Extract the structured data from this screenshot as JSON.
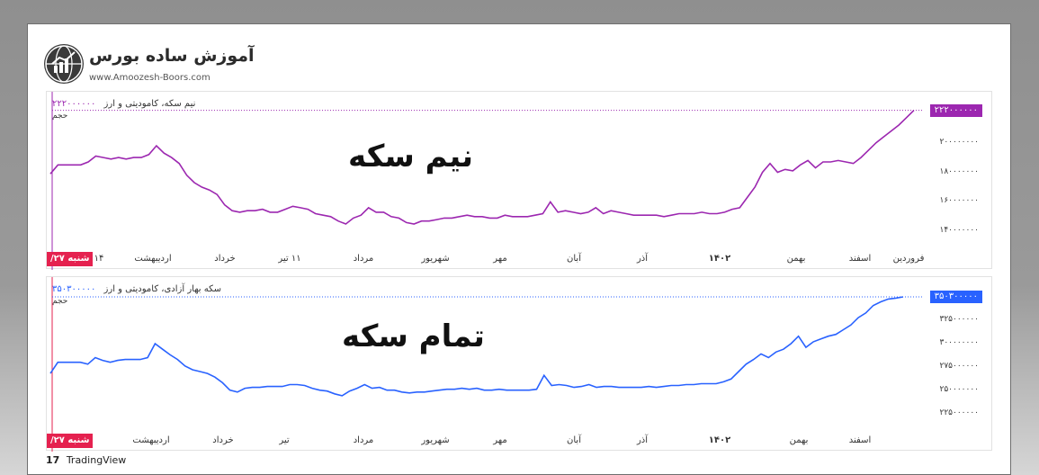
{
  "logo": {
    "icon": "chart-globe-icon",
    "title": "آموزش ساده بورس",
    "url": "www.Amoozesh-Boors.com"
  },
  "footer": {
    "brand_mark": "17",
    "brand": "TradingView"
  },
  "colors": {
    "series1": "#9c27b0",
    "series2": "#2962ff",
    "date_tag": "#e5214f"
  },
  "chart_data": [
    {
      "type": "line",
      "big_label": "نیم سکه",
      "legend_name": "نیم سکه، کامودیتی و ارز",
      "legend_value": "۲۲۲۰۰۰۰۰۰",
      "volume_label": "حجم",
      "last_price_label": "۲۲۲۰۰۰۰۰۰",
      "date_tag": "شنبه ۲۷/",
      "ylim": [
        131000000,
        226000000
      ],
      "y_ticks": [
        {
          "v": 200000000,
          "label": "۲۰۰۰۰۰۰۰۰"
        },
        {
          "v": 180000000,
          "label": "۱۸۰۰۰۰۰۰۰"
        },
        {
          "v": 160000000,
          "label": "۱۶۰۰۰۰۰۰۰"
        },
        {
          "v": 140000000,
          "label": "۱۴۰۰۰۰۰۰۰"
        }
      ],
      "x_ticks": [
        "۱۴",
        "اردیبهشت",
        "خرداد",
        "۱۱ تیر",
        "مرداد",
        "شهریور",
        "مهر",
        "آبان",
        "آذر",
        "۱۴۰۲",
        "بهمن",
        "اسفند",
        "فروردین"
      ],
      "bold_ticks": [
        "۱۴۰۲"
      ],
      "y": [
        179000000,
        185000000,
        185000000,
        185000000,
        185000000,
        187000000,
        191000000,
        190000000,
        189000000,
        190000000,
        189000000,
        190000000,
        190000000,
        192000000,
        198000000,
        193000000,
        190000000,
        186000000,
        178000000,
        173000000,
        170000000,
        168000000,
        165000000,
        158000000,
        154000000,
        153000000,
        154000000,
        154000000,
        155000000,
        153000000,
        153000000,
        155000000,
        157000000,
        156000000,
        155000000,
        152000000,
        151000000,
        150000000,
        147000000,
        145000000,
        149000000,
        151000000,
        156000000,
        153000000,
        153000000,
        150000000,
        149000000,
        146000000,
        145000000,
        147000000,
        147000000,
        148000000,
        149000000,
        149000000,
        150000000,
        151000000,
        150000000,
        150000000,
        149000000,
        149000000,
        151000000,
        150000000,
        150000000,
        150000000,
        151000000,
        152000000,
        160000000,
        153000000,
        154000000,
        153000000,
        152000000,
        153000000,
        156000000,
        152000000,
        154000000,
        153000000,
        152000000,
        151000000,
        151000000,
        151000000,
        151000000,
        150000000,
        151000000,
        152000000,
        152000000,
        152000000,
        153000000,
        152000000,
        152000000,
        153000000,
        155000000,
        156000000,
        163000000,
        170000000,
        180000000,
        186000000,
        180000000,
        182000000,
        181000000,
        185000000,
        188000000,
        183000000,
        187000000,
        187000000,
        188000000,
        187000000,
        186000000,
        190000000,
        195000000,
        200000000,
        204000000,
        208000000,
        212000000,
        217000000,
        222000000
      ]
    },
    {
      "type": "line",
      "big_label": "تمام سکه",
      "legend_name": "سکه بهار آزادی، کامودیتی و ارز",
      "legend_value": "۳۵۰۳۰۰۰۰۰",
      "volume_label": "حجم",
      "last_price_label": "۳۵۰۳۰۰۰۰۰",
      "date_tag": "شنبه ۲۷/",
      "ylim": [
        211000000,
        360000000
      ],
      "y_ticks": [
        {
          "v": 325000000,
          "label": "۳۲۵۰۰۰۰۰۰"
        },
        {
          "v": 300000000,
          "label": "۳۰۰۰۰۰۰۰۰"
        },
        {
          "v": 275000000,
          "label": "۲۷۵۰۰۰۰۰۰"
        },
        {
          "v": 250000000,
          "label": "۲۵۰۰۰۰۰۰۰"
        },
        {
          "v": 225000000,
          "label": "۲۲۵۰۰۰۰۰۰"
        }
      ],
      "x_ticks": [
        "اردیبهشت",
        "خرداد",
        "تیر",
        "مرداد",
        "شهریور",
        "مهر",
        "آبان",
        "آذر",
        "۱۴۰۲",
        "بهمن",
        "اسفند"
      ],
      "bold_ticks": [
        "۱۴۰۲"
      ],
      "y": [
        268000000,
        280000000,
        280000000,
        280000000,
        280000000,
        278000000,
        285000000,
        282000000,
        280000000,
        282000000,
        283000000,
        283000000,
        283000000,
        285000000,
        300000000,
        294000000,
        288000000,
        283000000,
        276000000,
        272000000,
        270000000,
        268000000,
        264000000,
        258000000,
        250000000,
        248000000,
        252000000,
        253000000,
        253000000,
        254000000,
        254000000,
        254000000,
        256000000,
        256000000,
        255000000,
        252000000,
        250000000,
        249000000,
        246000000,
        244000000,
        249000000,
        252000000,
        256000000,
        252000000,
        253000000,
        250000000,
        250000000,
        248000000,
        247000000,
        248000000,
        248000000,
        249000000,
        250000000,
        251000000,
        251000000,
        252000000,
        251000000,
        252000000,
        250000000,
        250000000,
        251000000,
        250000000,
        250000000,
        250000000,
        250000000,
        251000000,
        266000000,
        255000000,
        256000000,
        255000000,
        253000000,
        254000000,
        256000000,
        253000000,
        254000000,
        254000000,
        253000000,
        253000000,
        253000000,
        253000000,
        254000000,
        253000000,
        254000000,
        255000000,
        255000000,
        256000000,
        256000000,
        257000000,
        257000000,
        257000000,
        259000000,
        262000000,
        270000000,
        278000000,
        283000000,
        289000000,
        285000000,
        291000000,
        294000000,
        300000000,
        308000000,
        296000000,
        302000000,
        305000000,
        308000000,
        310000000,
        315000000,
        320000000,
        328000000,
        333000000,
        341000000,
        345000000,
        348000000,
        349000000,
        350300000
      ]
    }
  ]
}
